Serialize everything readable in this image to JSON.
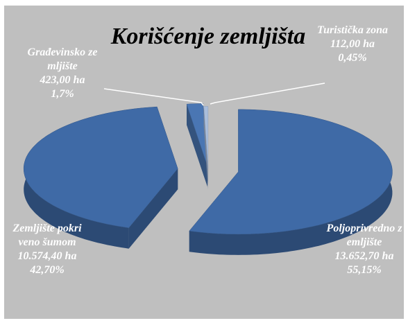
{
  "chart_data": {
    "type": "pie",
    "title": "Korišćenje zemljišta",
    "categories": [
      "Poljoprivredno zemljište",
      "Zemljište pokriveno šumom",
      "Građevinsko zemljište",
      "Turistička zona"
    ],
    "area_labels": [
      "13.652,70 ha",
      "10.574,40 ha",
      "423,00 ha",
      "112,00 ha"
    ],
    "values": [
      55.15,
      42.7,
      1.7,
      0.45
    ],
    "value_labels": [
      "55,15%",
      "42,70%",
      "1,7%",
      "0,45%"
    ],
    "colors": [
      "#3f6aa6",
      "#3f6aa6",
      "#4a76b3",
      "#a9bddb"
    ]
  }
}
